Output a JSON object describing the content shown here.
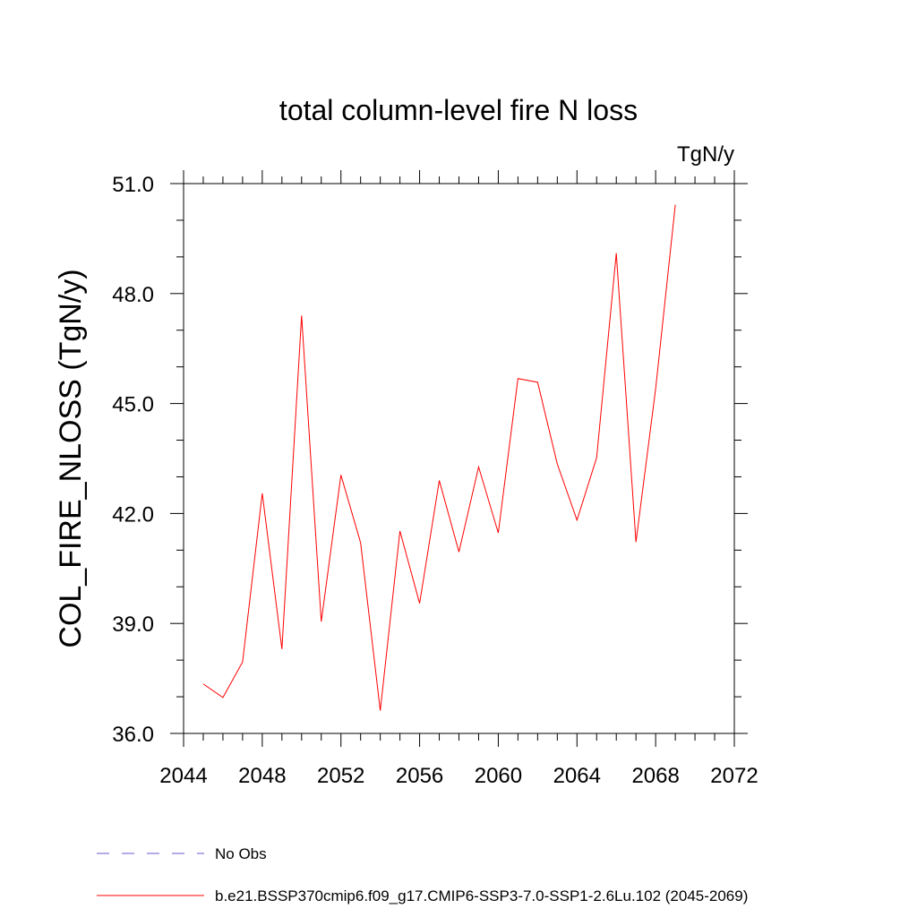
{
  "chart_data": {
    "type": "line",
    "title": "total column-level fire N loss",
    "units_label": "TgN/y",
    "ylabel": "COL_FIRE_NLOSS  (TgN/y)",
    "xlabel": "",
    "xlim": [
      2044,
      2072
    ],
    "ylim": [
      36.0,
      51.0
    ],
    "x_ticks": [
      "2044",
      "2048",
      "2052",
      "2056",
      "2060",
      "2064",
      "2068",
      "2072"
    ],
    "y_ticks": [
      "36.0",
      "39.0",
      "42.0",
      "45.0",
      "48.0",
      "51.0"
    ],
    "grid": false,
    "series": [
      {
        "name": "b.e21.BSSP370cmip6.f09_g17.CMIP6-SSP3-7.0-SSP1-2.6Lu.102 (2045-2069)",
        "color": "#ff0000",
        "style": "solid",
        "x": [
          2045,
          2046,
          2047,
          2048,
          2049,
          2050,
          2051,
          2052,
          2053,
          2054,
          2055,
          2056,
          2057,
          2058,
          2059,
          2060,
          2061,
          2062,
          2063,
          2064,
          2065,
          2066,
          2067,
          2068,
          2069
        ],
        "values": [
          37.35,
          36.98,
          37.95,
          42.55,
          38.3,
          47.4,
          39.05,
          43.05,
          41.2,
          36.62,
          41.52,
          39.55,
          42.9,
          40.95,
          43.27,
          41.47,
          45.68,
          45.58,
          43.35,
          41.82,
          43.52,
          49.1,
          41.22,
          45.4,
          50.42
        ]
      }
    ]
  },
  "legend": {
    "items": [
      {
        "label": "No Obs",
        "color": "#6a5acd",
        "style": "dashed"
      },
      {
        "label": "b.e21.BSSP370cmip6.f09_g17.CMIP6-SSP3-7.0-SSP1-2.6Lu.102 (2045-2069)",
        "color": "#ff0000",
        "style": "solid"
      }
    ]
  }
}
